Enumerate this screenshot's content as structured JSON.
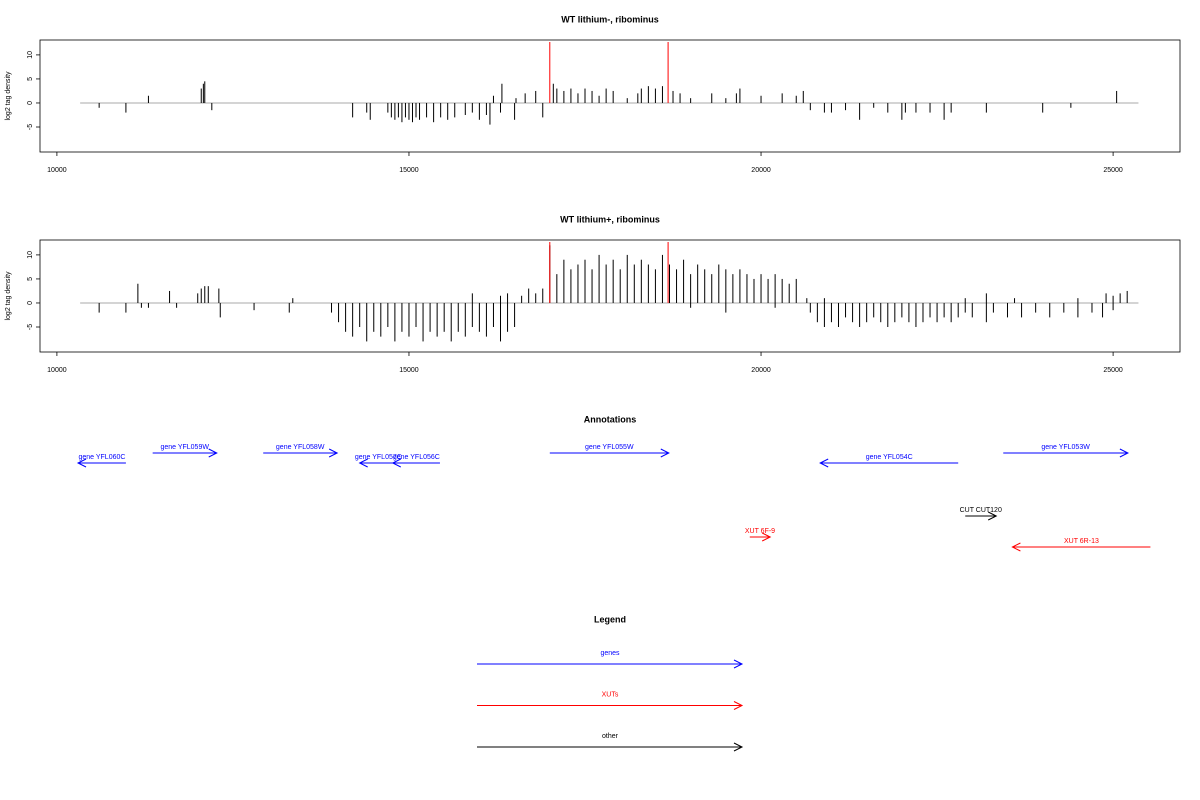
{
  "chart_data": [
    {
      "type": "bar",
      "title": "WT lithium-, ribominus",
      "y_label": "log2 tag density",
      "color": "#000000",
      "x": [
        10600,
        10980,
        11300,
        12050,
        12080,
        12100,
        12200,
        14200,
        14400,
        14450,
        14700,
        14750,
        14800,
        14850,
        14900,
        14950,
        15000,
        15050,
        15100,
        15150,
        15250,
        15350,
        15450,
        15550,
        15650,
        15800,
        15900,
        16000,
        16100,
        16150,
        16300,
        16500,
        16200,
        16320,
        16520,
        16650,
        16800,
        16900,
        17050,
        17100,
        17200,
        17300,
        17400,
        17500,
        17600,
        17700,
        17800,
        17900,
        18100,
        18250,
        18300,
        18400,
        18500,
        18600,
        18750,
        18850,
        19000,
        19300,
        19500,
        19650,
        19700,
        20000,
        20300,
        20500,
        20600,
        20700,
        20900,
        21000,
        21200,
        21400,
        21600,
        21800,
        22000,
        22050,
        22200,
        22400,
        22600,
        22700,
        23200,
        24000,
        24400,
        25050
      ],
      "values": [
        -1,
        -2,
        1.5,
        3,
        4,
        4.5,
        -1.5,
        -3,
        -2,
        -3.5,
        -2,
        -3,
        -3.5,
        -3,
        -4,
        -3,
        -3.5,
        -4,
        -3,
        -3.5,
        -3,
        -4,
        -3,
        -3.5,
        -3,
        -2.5,
        -2,
        -3.5,
        -2.5,
        -4.5,
        -2,
        -3.5,
        1.5,
        4,
        1,
        2,
        2.5,
        -3,
        4,
        3,
        2.5,
        3,
        2,
        3,
        2.5,
        1.5,
        3,
        2.5,
        1,
        2,
        3,
        3.5,
        3,
        3.5,
        2.5,
        2,
        1,
        2,
        1,
        2,
        3,
        1.5,
        2,
        1.5,
        2.5,
        -1.5,
        -2,
        -2,
        -1.5,
        -3.5,
        -1,
        -2,
        -3.5,
        -2,
        -2,
        -2,
        -3.5,
        -2,
        -2,
        -2,
        -1,
        2.5
      ],
      "baseline": [
        10330,
        25360
      ],
      "baseline_color": "#aaaaaa",
      "markers": [
        17000,
        18680
      ],
      "marker_color": "#ff0000",
      "xlim": [
        9760,
        25950
      ],
      "xticks": [
        10000,
        15000,
        20000,
        25000
      ],
      "ylim": [
        -10.2,
        13.1
      ],
      "yticks": [
        -5,
        0,
        5,
        10
      ]
    },
    {
      "type": "bar",
      "title": "WT lithium+, ribominus",
      "y_label": "log2 tag density",
      "color": "#000000",
      "x": [
        10600,
        10980,
        11150,
        11200,
        11300,
        11600,
        11700,
        12000,
        12050,
        12100,
        12150,
        12300,
        12320,
        12800,
        13300,
        13350,
        13900,
        14000,
        14100,
        14200,
        14300,
        14400,
        14500,
        14600,
        14700,
        14800,
        14900,
        15000,
        15100,
        15200,
        15300,
        15400,
        15500,
        15600,
        15700,
        15800,
        15900,
        16000,
        16100,
        16200,
        16300,
        16400,
        16500,
        15900,
        16300,
        16400,
        16600,
        16700,
        16800,
        16900,
        17000,
        17100,
        17200,
        17300,
        17400,
        17500,
        17600,
        17700,
        17800,
        17900,
        18000,
        18100,
        18200,
        18300,
        18400,
        18500,
        18600,
        18700,
        18800,
        18900,
        19000,
        19100,
        19200,
        19300,
        19400,
        19500,
        19600,
        19700,
        19800,
        19900,
        20000,
        20100,
        20200,
        20300,
        20400,
        20500,
        19000,
        19500,
        20200,
        20700,
        20800,
        20900,
        21000,
        21100,
        21200,
        21300,
        21400,
        21500,
        21600,
        21700,
        21800,
        21900,
        22000,
        22100,
        22200,
        22300,
        22400,
        22500,
        22600,
        22700,
        22800,
        22900,
        23000,
        23200,
        23300,
        23500,
        23700,
        23900,
        24100,
        24300,
        24500,
        24700,
        24850,
        25000,
        20650,
        20900,
        22900,
        23200,
        23600,
        24500,
        24900,
        25000,
        25100,
        25200
      ],
      "values": [
        -2,
        -2,
        4,
        -1,
        -1,
        2.5,
        -1,
        2,
        3,
        3.5,
        3.5,
        3,
        -3,
        -1.5,
        -2,
        1,
        -2,
        -4,
        -6,
        -7,
        -5,
        -8,
        -6,
        -7,
        -5,
        -8,
        -6,
        -7,
        -5,
        -8,
        -6,
        -7,
        -6,
        -8,
        -6,
        -7,
        -5,
        -6,
        -7,
        -5,
        -8,
        -6,
        -5,
        2,
        1.5,
        2,
        1.5,
        3,
        2,
        3,
        12,
        6,
        9,
        7,
        8,
        9,
        7,
        10,
        8,
        9,
        7,
        10,
        8,
        9,
        8,
        7,
        10,
        8,
        7,
        9,
        6,
        8,
        7,
        6,
        8,
        7,
        6,
        7,
        6,
        5,
        6,
        5,
        6,
        5,
        4,
        5,
        -1,
        -2,
        -1,
        -2,
        -4,
        -5,
        -4,
        -5,
        -3,
        -4,
        -5,
        -4,
        -3,
        -4,
        -5,
        -4,
        -3,
        -4,
        -5,
        -4,
        -3,
        -4,
        -3,
        -4,
        -3,
        -2,
        -3,
        -4,
        -2,
        -3,
        -3,
        -2,
        -3,
        -2,
        -3,
        -2,
        -3,
        -1.5,
        1,
        1,
        1,
        2,
        1,
        1,
        2,
        1.5,
        2,
        2.5
      ],
      "baseline": [
        10330,
        25360
      ],
      "baseline_color": "#aaaaaa",
      "markers": [
        17000,
        18680
      ],
      "marker_color": "#ff0000",
      "xlim": [
        9760,
        25950
      ],
      "xticks": [
        10000,
        15000,
        20000,
        25000
      ],
      "ylim": [
        -10.2,
        13.1
      ],
      "yticks": [
        -5,
        0,
        5,
        10
      ]
    }
  ],
  "annotations": {
    "title": "Annotations",
    "features": [
      {
        "label": "gene YFL060C",
        "start": 10980,
        "end": 10300,
        "color": "#0000ff"
      },
      {
        "label": "gene YFL059W",
        "start": 11360,
        "end": 12270,
        "color": "#0000ff"
      },
      {
        "label": "gene YFL058W",
        "start": 12930,
        "end": 13980,
        "color": "#0000ff"
      },
      {
        "label": "gene YFL057C",
        "start": 14830,
        "end": 14300,
        "color": "#0000ff"
      },
      {
        "label": "gene YFL056C",
        "start": 15440,
        "end": 14770,
        "color": "#0000ff"
      },
      {
        "label": "gene YFL055W",
        "start": 17000,
        "end": 18690,
        "color": "#0000ff"
      },
      {
        "label": "gene YFL054C",
        "start": 22800,
        "end": 20840,
        "color": "#0000ff"
      },
      {
        "label": "gene YFL053W",
        "start": 23440,
        "end": 25210,
        "color": "#0000ff"
      },
      {
        "label": "CUT CUT120",
        "start": 22900,
        "end": 23340,
        "color": "#000000"
      },
      {
        "label": "XUT 6F-9",
        "start": 19840,
        "end": 20130,
        "color": "#ff0000"
      },
      {
        "label": "XUT 6R-13",
        "start": 25530,
        "end": 23570,
        "color": "#ff0000"
      }
    ]
  },
  "legend": {
    "title": "Legend",
    "items": [
      {
        "label": "genes",
        "color": "#0000ff"
      },
      {
        "label": "XUTs",
        "color": "#ff0000"
      },
      {
        "label": "other",
        "color": "#000000"
      }
    ]
  }
}
